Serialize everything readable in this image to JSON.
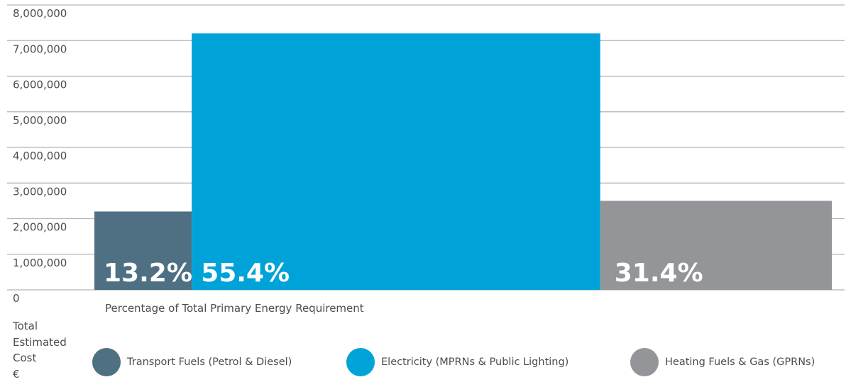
{
  "chart_data": {
    "type": "bar",
    "xlabel": "Percentage of Total Primary Energy Requirement",
    "ylabel_lines": [
      "Total",
      "Estimated",
      "Cost",
      "€"
    ],
    "ylim": [
      0,
      8000000
    ],
    "yticks": [
      {
        "value": 0,
        "label": "0"
      },
      {
        "value": 1000000,
        "label": "1,000,000"
      },
      {
        "value": 2000000,
        "label": "2,000,000"
      },
      {
        "value": 3000000,
        "label": "3,000,000"
      },
      {
        "value": 4000000,
        "label": "4,000,000"
      },
      {
        "value": 5000000,
        "label": "5,000,000"
      },
      {
        "value": 6000000,
        "label": "6,000,000"
      },
      {
        "value": 7000000,
        "label": "7,000,000"
      },
      {
        "value": 8000000,
        "label": "8,000,000"
      }
    ],
    "grid": true,
    "legend_position": "bottom",
    "series": [
      {
        "name": "Transport Fuels (Petrol & Diesel)",
        "value": 2200000,
        "percent": 13.2,
        "percent_label": "13.2%",
        "color": "#4f6f83"
      },
      {
        "name": "Electricity (MPRNs & Public Lighting)",
        "value": 7200000,
        "percent": 55.4,
        "percent_label": "55.4%",
        "color": "#00a3d8"
      },
      {
        "name": "Heating Fuels & Gas (GPRNs)",
        "value": 2500000,
        "percent": 31.4,
        "percent_label": "31.4%",
        "color": "#949598"
      }
    ]
  }
}
